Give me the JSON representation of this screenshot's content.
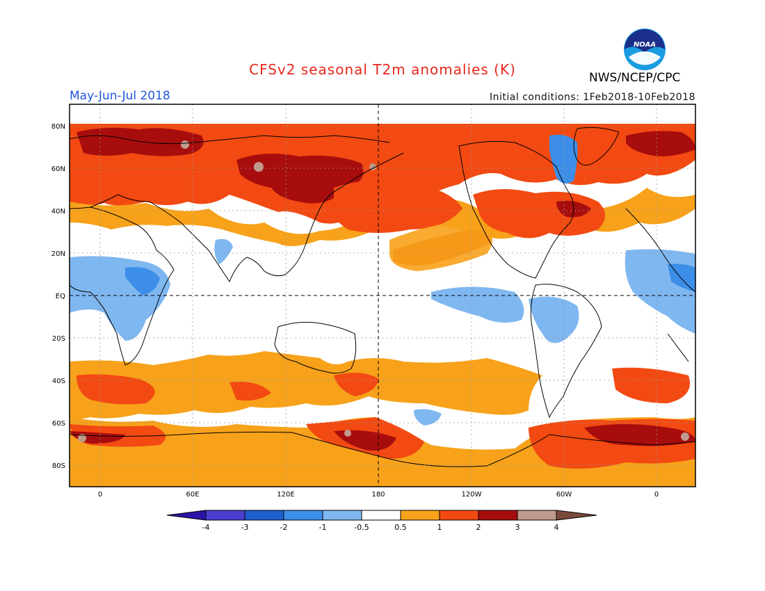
{
  "title": "CFSv2 seasonal T2m anomalies (K)",
  "period": "May-Jun-Jul 2018",
  "initial_conditions": "Initial conditions: 1Feb2018-10Feb2018",
  "agency": "NWS/NCEP/CPC",
  "logo_text": "NOAA",
  "map": {
    "projection": "equirectangular",
    "lon_labels": [
      "0",
      "60E",
      "120E",
      "180",
      "120W",
      "60W",
      "0"
    ],
    "lat_labels": [
      "80N",
      "60N",
      "40N",
      "20N",
      "EQ",
      "20S",
      "40S",
      "60S",
      "80S"
    ],
    "grid": "dotted every 20 degrees, dashed equator and 180 meridian"
  },
  "legend": {
    "ticks": [
      "-4",
      "-3",
      "-2",
      "-1",
      "-0.5",
      "0.5",
      "1",
      "2",
      "3",
      "4"
    ],
    "colors": [
      "#2a13a6",
      "#4a3fcf",
      "#1e5fd0",
      "#3d8ee8",
      "#7fb7f0",
      "#ffffff",
      "#f7a21a",
      "#f24a12",
      "#a80d0d",
      "#c09a8c",
      "#7a4a3a"
    ]
  }
}
